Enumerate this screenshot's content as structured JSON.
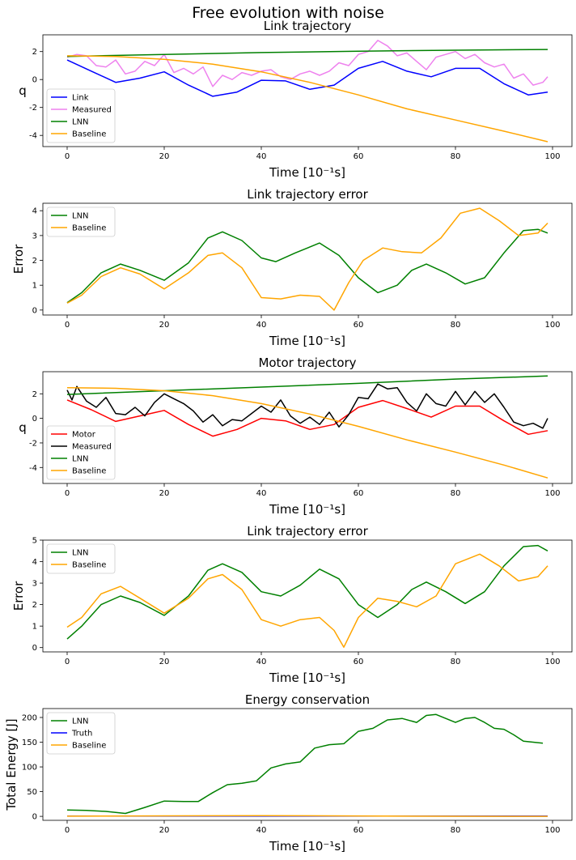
{
  "figure": {
    "suptitle": "Free evolution with noise"
  },
  "chart_data": [
    {
      "type": "line",
      "title": "Link trajectory",
      "xlabel": "Time [10⁻¹s]",
      "ylabel": "q",
      "xlim": [
        -5,
        104
      ],
      "ylim": [
        -4.8,
        3.2
      ],
      "xticks": [
        0,
        20,
        40,
        60,
        80,
        100
      ],
      "yticks": [
        -4,
        -2,
        0,
        2
      ],
      "grid": false,
      "legend": "lower-left",
      "series": [
        {
          "name": "Link",
          "color": "#0000ff",
          "x": [
            0,
            5,
            10,
            15,
            20,
            25,
            30,
            35,
            40,
            45,
            50,
            55,
            60,
            65,
            70,
            75,
            80,
            85,
            90,
            95,
            99
          ],
          "y": [
            1.4,
            0.6,
            -0.2,
            0.1,
            0.55,
            -0.4,
            -1.2,
            -0.9,
            -0.05,
            -0.1,
            -0.7,
            -0.4,
            0.8,
            1.3,
            0.6,
            0.2,
            0.8,
            0.8,
            -0.3,
            -1.1,
            -0.9
          ]
        },
        {
          "name": "Measured",
          "color": "#ee82ee",
          "x": [
            0,
            2,
            4,
            6,
            8,
            10,
            12,
            14,
            16,
            18,
            20,
            22,
            24,
            26,
            28,
            30,
            32,
            34,
            36,
            38,
            40,
            42,
            44,
            46,
            48,
            50,
            52,
            54,
            56,
            58,
            60,
            62,
            64,
            66,
            68,
            70,
            72,
            74,
            76,
            78,
            80,
            82,
            84,
            86,
            88,
            90,
            92,
            94,
            96,
            98,
            99
          ],
          "y": [
            1.6,
            1.8,
            1.7,
            1.0,
            0.9,
            1.4,
            0.4,
            0.6,
            1.3,
            1.0,
            1.8,
            0.5,
            0.8,
            0.4,
            0.9,
            -0.5,
            0.3,
            0.0,
            0.5,
            0.3,
            0.6,
            0.7,
            0.2,
            0.0,
            0.4,
            0.6,
            0.3,
            0.6,
            1.2,
            1.0,
            1.8,
            2.0,
            2.8,
            2.4,
            1.7,
            1.9,
            1.3,
            0.7,
            1.6,
            1.8,
            2.0,
            1.5,
            1.8,
            1.2,
            0.9,
            1.1,
            0.1,
            0.4,
            -0.4,
            -0.2,
            0.2
          ]
        },
        {
          "name": "LNN",
          "color": "#008000",
          "x": [
            0,
            20,
            40,
            60,
            80,
            99
          ],
          "y": [
            1.65,
            1.8,
            1.93,
            2.03,
            2.1,
            2.15
          ]
        },
        {
          "name": "Baseline",
          "color": "#ffa500",
          "x": [
            0,
            10,
            20,
            30,
            40,
            50,
            60,
            70,
            80,
            90,
            99
          ],
          "y": [
            1.7,
            1.65,
            1.45,
            1.1,
            0.55,
            -0.2,
            -1.1,
            -2.1,
            -2.9,
            -3.7,
            -4.45
          ]
        }
      ]
    },
    {
      "type": "line",
      "title": "Link trajectory error",
      "xlabel": "Time [10⁻¹s]",
      "ylabel": "Error",
      "xlim": [
        -5,
        104
      ],
      "ylim": [
        -0.2,
        4.3
      ],
      "xticks": [
        0,
        20,
        40,
        60,
        80,
        100
      ],
      "yticks": [
        0,
        1,
        2,
        3,
        4
      ],
      "grid": false,
      "legend": "upper-left",
      "series": [
        {
          "name": "LNN",
          "color": "#008000",
          "x": [
            0,
            3,
            7,
            11,
            15,
            20,
            25,
            29,
            32,
            36,
            40,
            43,
            47,
            52,
            56,
            60,
            64,
            68,
            71,
            74,
            78,
            82,
            86,
            90,
            94,
            97,
            99
          ],
          "y": [
            0.3,
            0.7,
            1.5,
            1.85,
            1.6,
            1.2,
            1.9,
            2.9,
            3.15,
            2.8,
            2.1,
            1.95,
            2.3,
            2.7,
            2.2,
            1.3,
            0.7,
            1.0,
            1.6,
            1.85,
            1.5,
            1.05,
            1.3,
            2.3,
            3.2,
            3.25,
            3.1
          ]
        },
        {
          "name": "Baseline",
          "color": "#ffa500",
          "x": [
            0,
            3,
            7,
            11,
            15,
            20,
            25,
            29,
            32,
            36,
            40,
            44,
            48,
            52,
            55,
            58,
            61,
            65,
            69,
            73,
            77,
            81,
            85,
            89,
            93,
            97,
            99
          ],
          "y": [
            0.28,
            0.6,
            1.35,
            1.7,
            1.45,
            0.85,
            1.5,
            2.2,
            2.3,
            1.7,
            0.5,
            0.45,
            0.6,
            0.55,
            0.0,
            1.1,
            2.0,
            2.5,
            2.35,
            2.3,
            2.9,
            3.9,
            4.1,
            3.6,
            3.0,
            3.1,
            3.5
          ]
        }
      ]
    },
    {
      "type": "line",
      "title": "Motor trajectory",
      "xlabel": "Time [10⁻¹s]",
      "ylabel": "q",
      "xlim": [
        -5,
        104
      ],
      "ylim": [
        -5.3,
        3.8
      ],
      "xticks": [
        0,
        20,
        40,
        60,
        80,
        100
      ],
      "yticks": [
        -4,
        -2,
        0,
        2
      ],
      "grid": false,
      "legend": "lower-left",
      "series": [
        {
          "name": "Motor",
          "color": "#ff0000",
          "x": [
            0,
            5,
            10,
            15,
            20,
            25,
            30,
            35,
            40,
            45,
            50,
            55,
            60,
            65,
            70,
            75,
            80,
            85,
            90,
            95,
            99
          ],
          "y": [
            1.5,
            0.7,
            -0.25,
            0.2,
            0.65,
            -0.5,
            -1.45,
            -0.9,
            0.0,
            -0.2,
            -0.9,
            -0.5,
            0.9,
            1.45,
            0.8,
            0.1,
            1.0,
            1.0,
            -0.2,
            -1.3,
            -1.0
          ]
        },
        {
          "name": "Measured",
          "color": "#000000",
          "x": [
            0,
            1,
            2,
            4,
            6,
            8,
            10,
            12,
            14,
            16,
            18,
            20,
            22,
            24,
            26,
            28,
            30,
            32,
            34,
            36,
            38,
            40,
            42,
            44,
            46,
            48,
            50,
            52,
            54,
            56,
            58,
            60,
            62,
            64,
            66,
            68,
            70,
            72,
            74,
            76,
            78,
            80,
            82,
            84,
            86,
            88,
            90,
            92,
            94,
            96,
            98,
            99
          ],
          "y": [
            2.3,
            1.5,
            2.6,
            1.4,
            0.9,
            1.7,
            0.4,
            0.3,
            0.9,
            0.2,
            1.3,
            2.0,
            1.6,
            1.2,
            0.6,
            -0.3,
            0.3,
            -0.6,
            -0.1,
            -0.2,
            0.4,
            1.0,
            0.5,
            1.5,
            0.2,
            -0.4,
            0.1,
            -0.5,
            0.5,
            -0.7,
            0.3,
            1.7,
            1.6,
            2.8,
            2.4,
            2.5,
            1.3,
            0.6,
            2.0,
            1.2,
            1.0,
            2.2,
            1.1,
            2.2,
            1.3,
            2.0,
            0.9,
            -0.3,
            -0.6,
            -0.4,
            -0.8,
            0.0
          ]
        },
        {
          "name": "LNN",
          "color": "#008000",
          "x": [
            0,
            20,
            40,
            60,
            80,
            99
          ],
          "y": [
            1.95,
            2.25,
            2.55,
            2.85,
            3.2,
            3.45
          ]
        },
        {
          "name": "Baseline",
          "color": "#ffa500",
          "x": [
            0,
            10,
            20,
            30,
            40,
            50,
            60,
            70,
            80,
            90,
            99
          ],
          "y": [
            2.5,
            2.45,
            2.25,
            1.85,
            1.2,
            0.35,
            -0.65,
            -1.75,
            -2.75,
            -3.8,
            -4.85
          ]
        }
      ]
    },
    {
      "type": "line",
      "title": "Link trajectory error",
      "xlabel": "Time [10⁻¹s]",
      "ylabel": "Error",
      "xlim": [
        -5,
        104
      ],
      "ylim": [
        -0.2,
        5.0
      ],
      "xticks": [
        0,
        20,
        40,
        60,
        80,
        100
      ],
      "yticks": [
        0,
        1,
        2,
        3,
        4,
        5
      ],
      "grid": false,
      "legend": "upper-left",
      "series": [
        {
          "name": "LNN",
          "color": "#008000",
          "x": [
            0,
            3,
            7,
            11,
            15,
            20,
            25,
            29,
            32,
            36,
            40,
            44,
            48,
            52,
            56,
            60,
            64,
            68,
            71,
            74,
            78,
            82,
            86,
            90,
            94,
            97,
            99
          ],
          "y": [
            0.4,
            1.0,
            2.0,
            2.4,
            2.1,
            1.5,
            2.4,
            3.6,
            3.9,
            3.5,
            2.6,
            2.4,
            2.9,
            3.65,
            3.2,
            2.0,
            1.4,
            2.0,
            2.7,
            3.05,
            2.6,
            2.05,
            2.6,
            3.8,
            4.7,
            4.75,
            4.5
          ]
        },
        {
          "name": "Baseline",
          "color": "#ffa500",
          "x": [
            0,
            3,
            7,
            11,
            15,
            20,
            25,
            29,
            32,
            36,
            40,
            44,
            48,
            52,
            55,
            57,
            60,
            64,
            68,
            72,
            76,
            80,
            85,
            89,
            93,
            97,
            99
          ],
          "y": [
            0.95,
            1.4,
            2.5,
            2.85,
            2.3,
            1.6,
            2.3,
            3.2,
            3.4,
            2.7,
            1.3,
            1.0,
            1.3,
            1.4,
            0.8,
            0.02,
            1.4,
            2.3,
            2.15,
            1.9,
            2.4,
            3.9,
            4.35,
            3.8,
            3.1,
            3.3,
            3.8
          ]
        }
      ]
    },
    {
      "type": "line",
      "title": "Energy conservation",
      "xlabel": "Time [10⁻¹s]",
      "ylabel": "Total Energy [J]",
      "xlim": [
        -5,
        104
      ],
      "ylim": [
        -8,
        218
      ],
      "xticks": [
        0,
        20,
        40,
        60,
        80,
        100
      ],
      "yticks": [
        0,
        50,
        100,
        150,
        200
      ],
      "grid": false,
      "legend": "upper-left",
      "series": [
        {
          "name": "LNN",
          "color": "#008000",
          "x": [
            0,
            4,
            8,
            12,
            16,
            20,
            24,
            27,
            30,
            33,
            36,
            39,
            42,
            45,
            48,
            51,
            54,
            57,
            60,
            63,
            66,
            69,
            72,
            74,
            76,
            78,
            80,
            82,
            84,
            86,
            88,
            90,
            92,
            94,
            96,
            98
          ],
          "y": [
            13,
            12,
            10,
            6,
            18,
            31,
            30,
            30,
            48,
            64,
            67,
            72,
            98,
            106,
            110,
            138,
            145,
            147,
            172,
            178,
            195,
            198,
            190,
            204,
            206,
            198,
            190,
            198,
            200,
            190,
            178,
            176,
            165,
            152,
            150,
            148
          ]
        },
        {
          "name": "Truth",
          "color": "#0000ff",
          "x": [
            0,
            20,
            40,
            60,
            80,
            99
          ],
          "y": [
            0.5,
            0.5,
            0.5,
            0.5,
            0.5,
            0.5
          ]
        },
        {
          "name": "Baseline",
          "color": "#ffa500",
          "x": [
            0,
            20,
            40,
            60,
            80,
            99
          ],
          "y": [
            0.3,
            1.0,
            1.5,
            0.8,
            0.2,
            0.0
          ]
        }
      ]
    }
  ]
}
